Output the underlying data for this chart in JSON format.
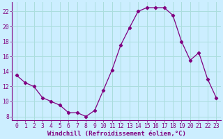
{
  "x": [
    0,
    1,
    2,
    3,
    4,
    5,
    6,
    7,
    8,
    9,
    10,
    11,
    12,
    13,
    14,
    15,
    16,
    17,
    18,
    19,
    20,
    21,
    22,
    23
  ],
  "y": [
    13.5,
    12.5,
    12.0,
    10.5,
    10.0,
    9.5,
    8.5,
    8.5,
    8.0,
    8.8,
    11.5,
    14.2,
    17.5,
    19.8,
    22.0,
    22.5,
    22.5,
    22.5,
    21.5,
    18.0,
    15.5,
    16.5,
    13.0,
    10.5
  ],
  "line_color": "#800080",
  "marker": "D",
  "marker_size": 2.2,
  "bg_color": "#cceeff",
  "grid_color": "#aadddd",
  "xlabel": "Windchill (Refroidissement éolien,°C)",
  "ylim": [
    7.5,
    23.2
  ],
  "xlim": [
    -0.5,
    23.5
  ],
  "yticks": [
    8,
    10,
    12,
    14,
    16,
    18,
    20,
    22
  ],
  "xticks": [
    0,
    1,
    2,
    3,
    4,
    5,
    6,
    7,
    8,
    9,
    10,
    11,
    12,
    13,
    14,
    15,
    16,
    17,
    18,
    19,
    20,
    21,
    22,
    23
  ],
  "xlabel_fontsize": 6.5,
  "tick_fontsize": 5.8,
  "label_color": "#800080"
}
